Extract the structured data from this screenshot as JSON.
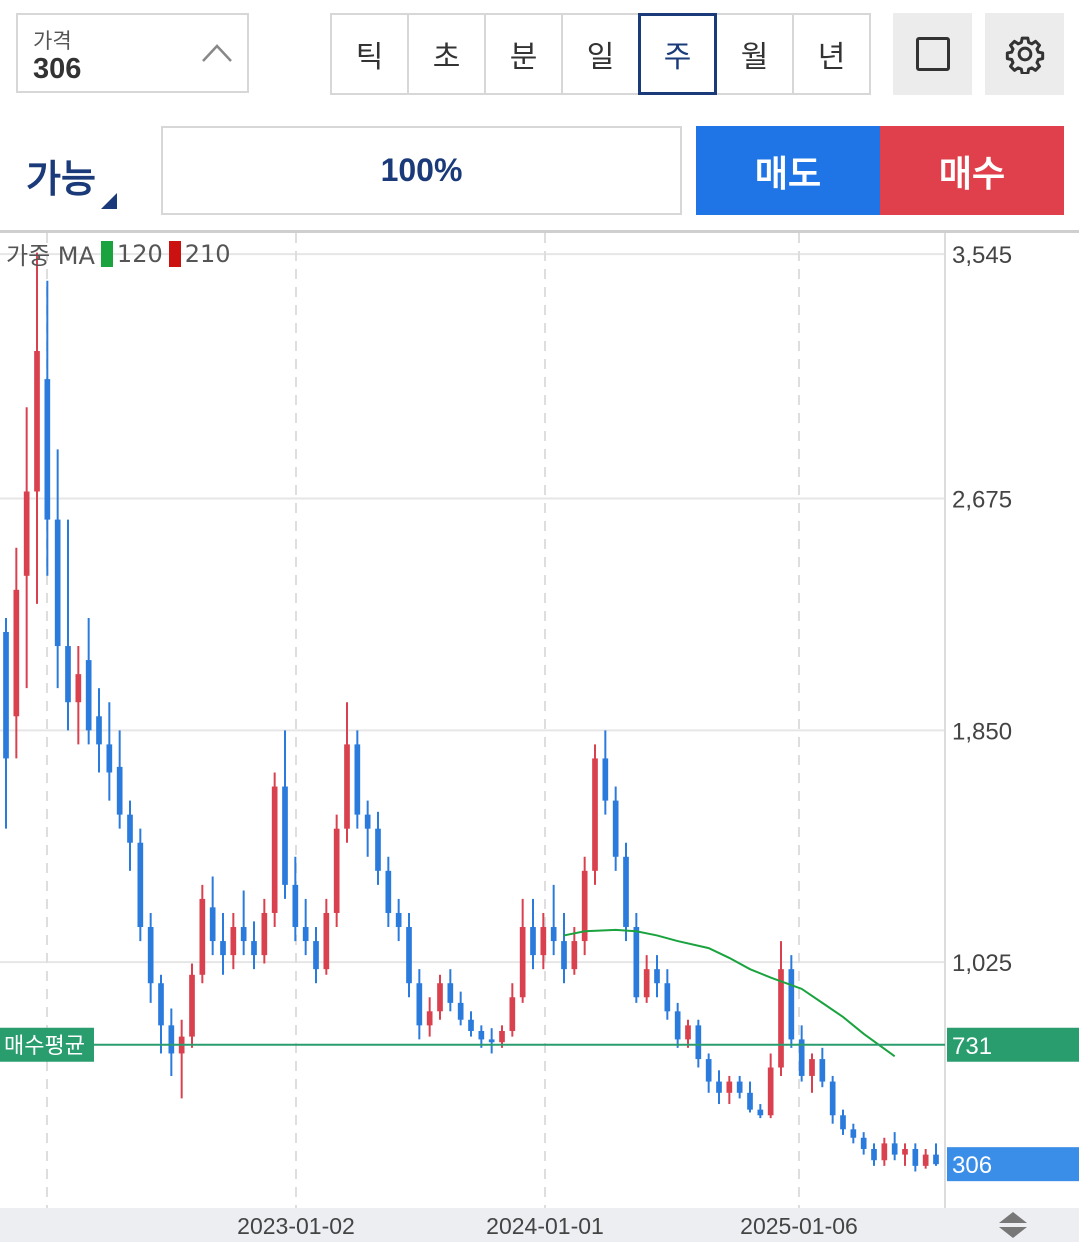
{
  "price": {
    "label": "가격",
    "value": "306"
  },
  "periods": [
    "틱",
    "초",
    "분",
    "일",
    "주",
    "월",
    "년"
  ],
  "active_period": "주",
  "order": {
    "available_label": "가능",
    "percent": "100%",
    "sell_label": "매도",
    "buy_label": "매수"
  },
  "colors": {
    "up": "#d9414f",
    "down": "#2b7bdc",
    "ma": "#1aa33f",
    "avg_line": "#2a9d6f",
    "current": "#3b8ee8",
    "accent": "#1a3a7a"
  },
  "legend": {
    "prefix": "가중 MA",
    "ma1": "120",
    "ma2": "210"
  },
  "chart_data": {
    "type": "candlestick",
    "x_tick_labels": [
      "2023-01-02",
      "2024-01-01",
      "2025-01-06"
    ],
    "y_tick_labels": [
      "3,545",
      "2,675",
      "1,850",
      "1,025"
    ],
    "y_ticks": [
      3545,
      2675,
      1850,
      1025
    ],
    "ylim": [
      150,
      3620
    ],
    "avg_buy": {
      "label": "매수평균",
      "value": 731,
      "value_label": "731"
    },
    "current": {
      "value": 306,
      "value_label": "306"
    },
    "grid": true,
    "ma_120": [
      [
        200,
        1120
      ],
      [
        210,
        1135
      ],
      [
        220,
        1140
      ],
      [
        230,
        1135
      ],
      [
        240,
        1120
      ],
      [
        250,
        1100
      ],
      [
        260,
        1075
      ],
      [
        270,
        1040
      ],
      [
        280,
        1000
      ],
      [
        290,
        970
      ],
      [
        300,
        930
      ],
      [
        310,
        880
      ],
      [
        320,
        830
      ],
      [
        330,
        770
      ],
      [
        340,
        690
      ]
    ],
    "candles": [
      [
        2200,
        2250,
        1500,
        1750
      ],
      [
        1900,
        2500,
        1750,
        2350
      ],
      [
        2400,
        3000,
        2000,
        2700
      ],
      [
        2700,
        3550,
        2300,
        3200
      ],
      [
        3100,
        3450,
        2400,
        2600
      ],
      [
        2600,
        2850,
        2000,
        2150
      ],
      [
        2150,
        2600,
        1850,
        1950
      ],
      [
        1950,
        2150,
        1800,
        2050
      ],
      [
        2100,
        2250,
        1800,
        1850
      ],
      [
        1900,
        2000,
        1700,
        1800
      ],
      [
        1800,
        1950,
        1600,
        1700
      ],
      [
        1720,
        1850,
        1500,
        1550
      ],
      [
        1550,
        1600,
        1350,
        1450
      ],
      [
        1450,
        1500,
        1100,
        1150
      ],
      [
        1150,
        1200,
        880,
        950
      ],
      [
        950,
        980,
        700,
        800
      ],
      [
        800,
        860,
        620,
        700
      ],
      [
        700,
        820,
        540,
        760
      ],
      [
        760,
        1020,
        720,
        980
      ],
      [
        980,
        1300,
        950,
        1250
      ],
      [
        1220,
        1330,
        1050,
        1100
      ],
      [
        1100,
        1200,
        980,
        1050
      ],
      [
        1050,
        1200,
        1000,
        1150
      ],
      [
        1150,
        1280,
        1050,
        1100
      ],
      [
        1100,
        1170,
        1000,
        1050
      ],
      [
        1050,
        1250,
        1020,
        1200
      ],
      [
        1200,
        1700,
        1150,
        1650
      ],
      [
        1650,
        1850,
        1250,
        1300
      ],
      [
        1300,
        1400,
        1100,
        1150
      ],
      [
        1150,
        1250,
        1050,
        1100
      ],
      [
        1100,
        1150,
        950,
        1000
      ],
      [
        1000,
        1250,
        980,
        1200
      ],
      [
        1200,
        1550,
        1150,
        1500
      ],
      [
        1500,
        1950,
        1450,
        1800
      ],
      [
        1800,
        1850,
        1500,
        1550
      ],
      [
        1550,
        1600,
        1400,
        1500
      ],
      [
        1500,
        1560,
        1300,
        1350
      ],
      [
        1350,
        1400,
        1150,
        1200
      ],
      [
        1200,
        1250,
        1100,
        1150
      ],
      [
        1150,
        1200,
        900,
        950
      ],
      [
        950,
        1000,
        750,
        800
      ],
      [
        800,
        900,
        760,
        850
      ],
      [
        850,
        980,
        820,
        950
      ],
      [
        950,
        1000,
        850,
        880
      ],
      [
        880,
        920,
        800,
        820
      ],
      [
        820,
        850,
        760,
        780
      ],
      [
        780,
        800,
        720,
        750
      ],
      [
        750,
        790,
        700,
        740
      ],
      [
        740,
        800,
        720,
        780
      ],
      [
        780,
        950,
        760,
        900
      ],
      [
        900,
        1250,
        880,
        1150
      ],
      [
        1150,
        1250,
        1000,
        1050
      ],
      [
        1050,
        1200,
        1000,
        1150
      ],
      [
        1150,
        1300,
        1050,
        1100
      ],
      [
        1100,
        1200,
        950,
        1000
      ],
      [
        1000,
        1150,
        980,
        1100
      ],
      [
        1100,
        1400,
        1050,
        1350
      ],
      [
        1350,
        1800,
        1300,
        1750
      ],
      [
        1750,
        1850,
        1550,
        1600
      ],
      [
        1600,
        1650,
        1350,
        1400
      ],
      [
        1400,
        1450,
        1100,
        1150
      ],
      [
        1150,
        1200,
        880,
        900
      ],
      [
        900,
        1050,
        880,
        1000
      ],
      [
        1000,
        1050,
        900,
        950
      ],
      [
        950,
        1000,
        820,
        850
      ],
      [
        850,
        880,
        720,
        750
      ],
      [
        750,
        820,
        720,
        800
      ],
      [
        800,
        820,
        650,
        680
      ],
      [
        680,
        700,
        560,
        600
      ],
      [
        600,
        640,
        520,
        560
      ],
      [
        560,
        620,
        520,
        600
      ],
      [
        600,
        620,
        540,
        560
      ],
      [
        560,
        600,
        490,
        500
      ],
      [
        500,
        520,
        470,
        480
      ],
      [
        480,
        700,
        470,
        650
      ],
      [
        650,
        1100,
        620,
        1000
      ],
      [
        1000,
        1050,
        720,
        750
      ],
      [
        750,
        800,
        600,
        620
      ],
      [
        620,
        700,
        560,
        680
      ],
      [
        680,
        720,
        580,
        600
      ],
      [
        600,
        620,
        450,
        480
      ],
      [
        480,
        500,
        410,
        430
      ],
      [
        430,
        450,
        380,
        400
      ],
      [
        400,
        420,
        340,
        360
      ],
      [
        360,
        380,
        300,
        320
      ],
      [
        320,
        400,
        300,
        380
      ],
      [
        380,
        420,
        320,
        340
      ],
      [
        340,
        380,
        300,
        360
      ],
      [
        360,
        380,
        280,
        300
      ],
      [
        300,
        360,
        290,
        340
      ],
      [
        340,
        380,
        300,
        306
      ]
    ]
  }
}
